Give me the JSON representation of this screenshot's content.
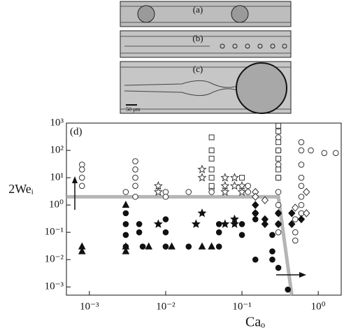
{
  "panels": {
    "a": "(a)",
    "b": "(b)",
    "c": "(c)",
    "scale_bar": "50 μm"
  },
  "chart_data": {
    "type": "scatter",
    "panel_label": "(d)",
    "x_label": "Caₒ",
    "y_label": "2Weᵢ",
    "log_x": true,
    "log_y": true,
    "xlim": [
      0.0005,
      2
    ],
    "ylim": [
      0.0005,
      1000
    ],
    "xticks": [
      {
        "value": 0.001,
        "label": "10⁻³"
      },
      {
        "value": 0.01,
        "label": "10⁻²"
      },
      {
        "value": 0.1,
        "label": "10⁻¹"
      },
      {
        "value": 1,
        "label": "10⁰"
      }
    ],
    "yticks": [
      {
        "value": 0.001,
        "label": "10⁻³"
      },
      {
        "value": 0.01,
        "label": "10⁻²"
      },
      {
        "value": 0.1,
        "label": "10⁻¹"
      },
      {
        "value": 1,
        "label": "10⁰"
      },
      {
        "value": 10,
        "label": "10¹"
      },
      {
        "value": 100,
        "label": "10²"
      },
      {
        "value": 1000,
        "label": "10³"
      }
    ],
    "guide_line": {
      "color": "#a8a8a8",
      "x": [
        0.0005,
        0.3,
        0.45
      ],
      "values": [
        2,
        2,
        0.0005
      ]
    },
    "series": [
      {
        "marker": "circle",
        "filled": false,
        "color": "#333333",
        "x": [
          0.0008,
          0.0008,
          0.0008,
          0.0008,
          0.004,
          0.004,
          0.004,
          0.004,
          0.004,
          0.003,
          0.01,
          0.01,
          0.02,
          0.04,
          0.04,
          0.12,
          0.12,
          0.3,
          0.3,
          0.3,
          0.3,
          0.3,
          0.3,
          0.3,
          0.3,
          0.3,
          0.6,
          0.6,
          0.6,
          0.6,
          0.6,
          0.6,
          0.6,
          0.6,
          0.5,
          0.5,
          0.5,
          1.2,
          1.7,
          0.8
        ],
        "values": [
          30,
          20,
          10,
          5,
          40,
          20,
          10,
          5,
          2,
          3,
          3,
          2,
          3,
          4,
          3,
          5,
          3,
          300,
          100,
          30,
          10,
          3,
          1,
          0.5,
          0.2,
          0.1,
          200,
          100,
          30,
          10,
          5,
          2,
          1,
          0.5,
          0.3,
          0.1,
          0.05,
          80,
          80,
          100
        ]
      },
      {
        "marker": "square",
        "filled": false,
        "color": "#333333",
        "x": [
          0.04,
          0.04,
          0.04,
          0.04,
          0.04,
          0.04,
          0.3,
          0.3,
          0.3,
          0.3,
          0.3,
          0.3,
          0.3,
          0.1
        ],
        "values": [
          300,
          100,
          50,
          20,
          10,
          5,
          800,
          500,
          200,
          100,
          50,
          20,
          10,
          10
        ]
      },
      {
        "marker": "star",
        "filled": false,
        "color": "#333333",
        "x": [
          0.008,
          0.008,
          0.03,
          0.03,
          0.06,
          0.06,
          0.06,
          0.08,
          0.08,
          0.1,
          0.1
        ],
        "values": [
          5,
          3,
          20,
          10,
          10,
          5,
          3,
          10,
          5,
          5,
          3
        ]
      },
      {
        "marker": "diamond",
        "filled": false,
        "color": "#333333",
        "x": [
          0.15,
          0.15,
          0.2,
          0.7,
          0.7,
          0.5
        ],
        "values": [
          3,
          2,
          1.5,
          3,
          0.5,
          0.8
        ]
      },
      {
        "marker": "circle",
        "filled": true,
        "color": "#111111",
        "x": [
          0.003,
          0.003,
          0.003,
          0.003,
          0.0045,
          0.0045,
          0.005,
          0.01,
          0.01,
          0.01,
          0.02,
          0.05,
          0.05,
          0.05,
          0.1,
          0.1,
          0.15,
          0.15,
          0.25,
          0.25,
          0.25,
          0.3,
          0.4,
          0.15
        ],
        "values": [
          0.5,
          0.2,
          0.08,
          0.03,
          0.2,
          0.1,
          0.03,
          0.3,
          0.1,
          0.03,
          0.03,
          0.1,
          0.03,
          0.2,
          0.2,
          0.08,
          0.5,
          0.3,
          0.08,
          0.02,
          0.01,
          0.005,
          0.0008,
          0.01
        ]
      },
      {
        "marker": "triangle",
        "filled": true,
        "color": "#111111",
        "x": [
          0.0008,
          0.0008,
          0.003,
          0.003,
          0.003,
          0.006,
          0.012,
          0.03,
          0.04
        ],
        "values": [
          0.03,
          0.02,
          0.03,
          0.02,
          1,
          0.03,
          0.03,
          0.03,
          0.03
        ]
      },
      {
        "marker": "star",
        "filled": true,
        "color": "#111111",
        "x": [
          0.008,
          0.025,
          0.03,
          0.06,
          0.08,
          0.08
        ],
        "values": [
          0.2,
          0.2,
          0.5,
          0.2,
          0.2,
          0.3
        ]
      },
      {
        "marker": "diamond",
        "filled": true,
        "color": "#111111",
        "x": [
          0.15,
          0.15,
          0.2,
          0.2,
          0.3,
          0.3,
          0.45,
          0.45,
          0.6
        ],
        "values": [
          1,
          0.5,
          0.3,
          0.2,
          0.5,
          0.2,
          0.5,
          0.2,
          0.3
        ]
      }
    ]
  }
}
